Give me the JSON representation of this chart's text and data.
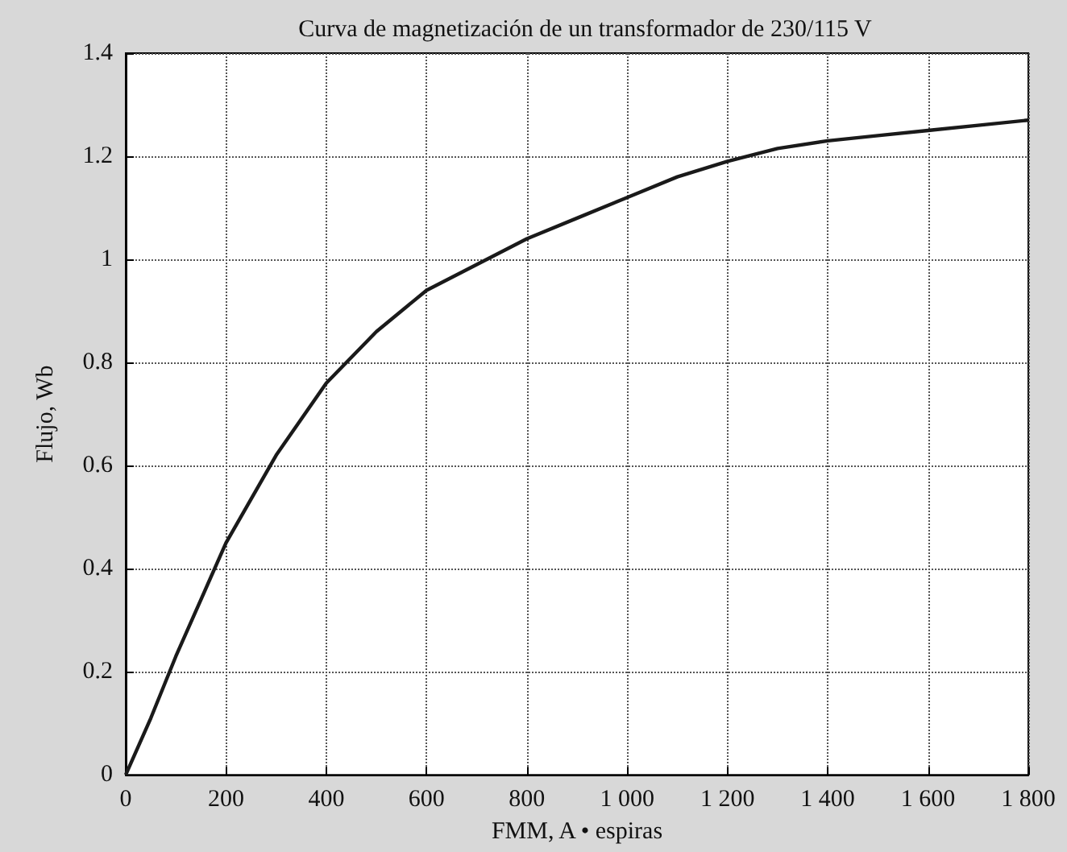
{
  "chart_data": {
    "type": "line",
    "title": "Curva de magnetización de un transformador de 230/115 V",
    "xlabel": "FMM, A • espiras",
    "ylabel": "Flujo, Wb",
    "x": [
      0,
      50,
      100,
      150,
      200,
      300,
      400,
      500,
      600,
      700,
      800,
      900,
      1000,
      1100,
      1200,
      1300,
      1400,
      1500,
      1600,
      1700,
      1800
    ],
    "series": [
      {
        "color": "#1a1a1a",
        "values": [
          0,
          0.11,
          0.23,
          0.34,
          0.45,
          0.62,
          0.76,
          0.86,
          0.94,
          0.99,
          1.04,
          1.08,
          1.12,
          1.16,
          1.19,
          1.215,
          1.23,
          1.24,
          1.25,
          1.26,
          1.27
        ]
      }
    ],
    "xlim": [
      0,
      1800
    ],
    "xticks": [
      0,
      200,
      400,
      600,
      800,
      {
        "value": 1000,
        "label": "1 000"
      },
      {
        "value": 1200,
        "label": "1 200"
      },
      {
        "value": 1400,
        "label": "1 400"
      },
      {
        "value": 1600,
        "label": "1 600"
      },
      {
        "value": 1800,
        "label": "1 800"
      }
    ],
    "ylim": [
      0,
      1.4
    ],
    "yticks": [
      0,
      0.2,
      0.4,
      0.6,
      0.8,
      1,
      1.2,
      1.4
    ],
    "grid": true,
    "marker": "none",
    "line_style": "solid"
  }
}
